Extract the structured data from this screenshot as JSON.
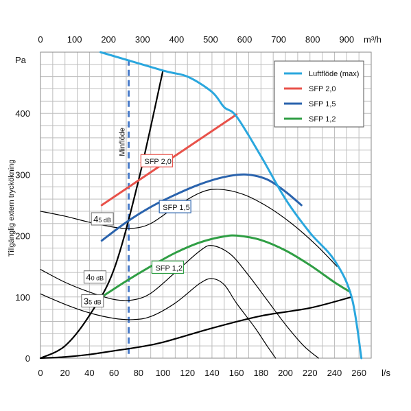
{
  "chart_data": {
    "type": "line",
    "xlabel": "l/s",
    "x2label": "m³/h",
    "ylabel": "Tillgänglig extern tryckökning",
    "yunit": "Pa",
    "xlim": [
      0,
      270
    ],
    "ylim": [
      0,
      500
    ],
    "x2lim": [
      0,
      972
    ],
    "x_ticks": [
      "0",
      "20",
      "40",
      "60",
      "80",
      "100",
      "120",
      "140",
      "160",
      "180",
      "200",
      "220",
      "240",
      "260"
    ],
    "y_ticks": [
      "0",
      "100",
      "200",
      "300",
      "400"
    ],
    "x2_ticks": [
      "0",
      "100",
      "200",
      "300",
      "400",
      "500",
      "600",
      "700",
      "800",
      "900"
    ],
    "grid": true,
    "legend_position": "top-right",
    "legend": [
      {
        "label": "Luftflöde (max)",
        "color": "#2aa7de"
      },
      {
        "label": "SFP 2,0",
        "color": "#e8524a"
      },
      {
        "label": "SFP 1,5",
        "color": "#2a63ad"
      },
      {
        "label": "SFP 1,2",
        "color": "#2f9e44"
      }
    ],
    "series": [
      {
        "name": "Luftflöde (max)",
        "color": "#2aa7de",
        "x": [
          49,
          100,
          120,
          140,
          150,
          160,
          180,
          200,
          220,
          240,
          254,
          262
        ],
        "y": [
          500,
          470,
          460,
          435,
          410,
          395,
          330,
          260,
          205,
          160,
          100,
          0
        ]
      },
      {
        "name": "SFP 2,0",
        "color": "#e8524a",
        "x": [
          50,
          160
        ],
        "y": [
          250,
          398
        ]
      },
      {
        "name": "SFP 1,5",
        "color": "#2a63ad",
        "x": [
          50,
          70,
          90,
          110,
          130,
          150,
          168,
          185,
          200,
          213
        ],
        "y": [
          192,
          222,
          247,
          267,
          284,
          296,
          300,
          292,
          272,
          250
        ]
      },
      {
        "name": "SFP 1,2",
        "color": "#2f9e44",
        "x": [
          50,
          70,
          90,
          110,
          130,
          150,
          162,
          180,
          200,
          220,
          240,
          253
        ],
        "y": [
          100,
          126,
          150,
          172,
          189,
          199,
          200,
          193,
          176,
          152,
          124,
          108
        ]
      },
      {
        "name": "",
        "color": "#000000",
        "role": "system-curve",
        "x": [
          0,
          20,
          40,
          60,
          80,
          100,
          140,
          180,
          220,
          254
        ],
        "y": [
          0,
          2,
          6,
          12,
          18,
          26,
          49,
          69,
          82,
          100
        ]
      },
      {
        "name": "",
        "color": "#000000",
        "role": "system-curve",
        "x": [
          0,
          20,
          40,
          60,
          80,
          100
        ],
        "y": [
          0,
          20,
          70,
          145,
          290,
          470
        ]
      },
      {
        "name": "45 dB",
        "color": "#000000",
        "role": "sound-curve",
        "x": [
          0,
          20,
          40,
          60,
          75,
          90,
          110,
          130,
          145,
          165,
          185,
          205,
          225,
          242
        ],
        "y": [
          240,
          232,
          222,
          214,
          212,
          220,
          247,
          270,
          276,
          268,
          248,
          220,
          185,
          150
        ]
      },
      {
        "name": "40 dB",
        "color": "#000000",
        "role": "sound-curve",
        "x": [
          0,
          20,
          40,
          60,
          75,
          90,
          110,
          130,
          140,
          155,
          170,
          185,
          200,
          215,
          227
        ],
        "y": [
          145,
          124,
          108,
          96,
          95,
          106,
          140,
          175,
          184,
          170,
          135,
          95,
          55,
          20,
          0
        ]
      },
      {
        "name": "35 dB",
        "color": "#000000",
        "role": "sound-curve",
        "x": [
          0,
          20,
          40,
          60,
          75,
          90,
          110,
          130,
          140,
          150,
          160,
          175,
          185,
          192
        ],
        "y": [
          105,
          88,
          74,
          65,
          63,
          68,
          90,
          122,
          130,
          120,
          90,
          50,
          20,
          0
        ]
      }
    ],
    "annotations": [
      {
        "text": "Minflöde",
        "x": 72
      },
      {
        "text": "SFP 2,0",
        "x": 82,
        "y": 317
      },
      {
        "text": "SFP 1,5",
        "x": 97,
        "y": 242
      },
      {
        "text": "SFP 1,2",
        "x": 91,
        "y": 143
      },
      {
        "text_main": "4",
        "text_sub": "5 dB",
        "x": 18,
        "y": 222
      },
      {
        "text_main": "4",
        "text_sub": "0 dB",
        "x": 12,
        "y": 127
      },
      {
        "text_main": "3",
        "text_sub": "5 dB",
        "x": 10,
        "y": 88
      }
    ]
  }
}
